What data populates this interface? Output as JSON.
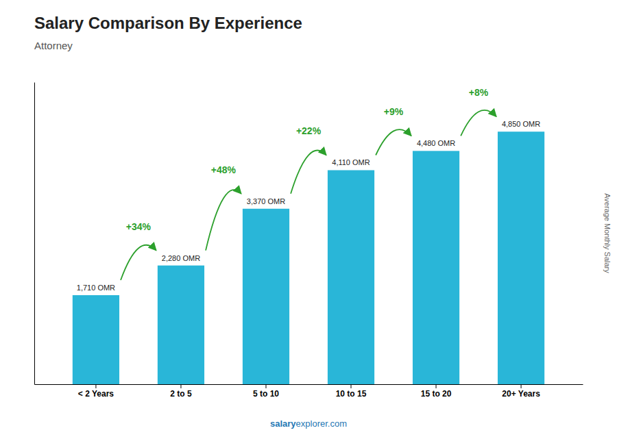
{
  "chart_data": {
    "type": "bar",
    "title": "Salary Comparison By Experience",
    "subtitle": "Attorney",
    "ylabel": "Average Monthly Salary",
    "categories": [
      "< 2 Years",
      "2 to 5",
      "5 to 10",
      "10 to 15",
      "15 to 20",
      "20+ Years"
    ],
    "values": [
      1710,
      2280,
      3370,
      4110,
      4480,
      4850
    ],
    "value_labels": [
      "1,710 OMR",
      "2,280 OMR",
      "3,370 OMR",
      "4,110 OMR",
      "4,480 OMR",
      "4,850 OMR"
    ],
    "data_labels": true,
    "annotations": [
      "+34%",
      "+48%",
      "+22%",
      "+9%",
      "+8%"
    ],
    "color": "#29b6d8",
    "ylim": [
      0,
      5800
    ],
    "tick_labels": "x",
    "grid": false,
    "watermark": [
      "salary",
      "explorer.com"
    ]
  }
}
